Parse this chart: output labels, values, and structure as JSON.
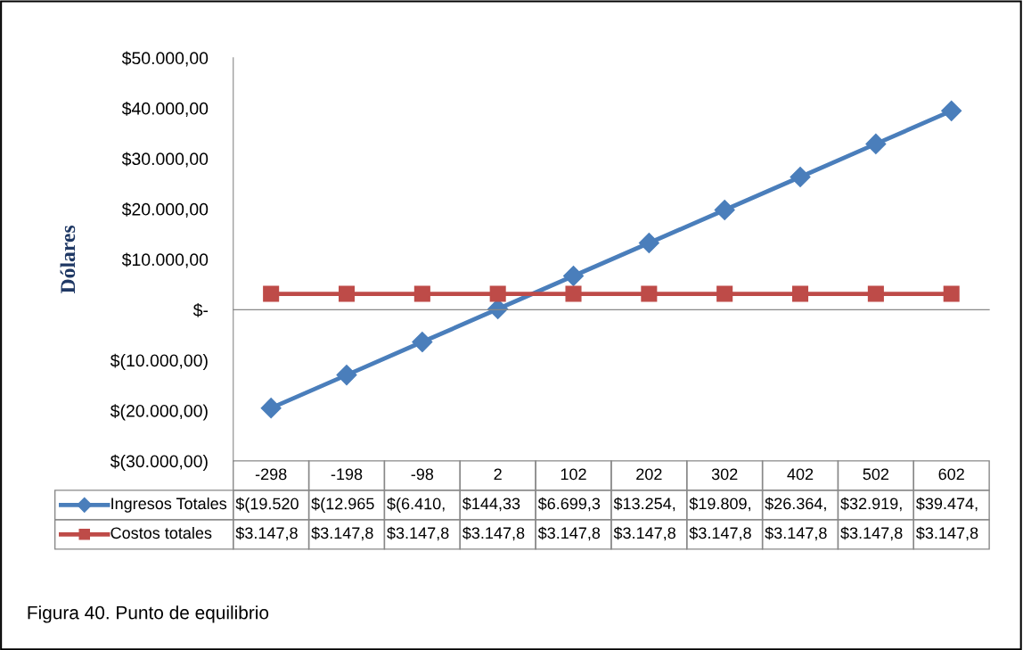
{
  "chart_data": {
    "type": "line",
    "categories": [
      "-298",
      "-198",
      "-98",
      "2",
      "102",
      "202",
      "302",
      "402",
      "502",
      "602"
    ],
    "ylabel": "Dólares",
    "series": [
      {
        "name": "Ingresos Totales",
        "color": "#4a7ebb",
        "marker": "diamond",
        "values": [
          -19520,
          -12965,
          -6410,
          144.33,
          6699.3,
          13254,
          19809,
          26364,
          32919,
          39474
        ],
        "value_labels": [
          "$(19.520",
          "$(12.965",
          "$(6.410,",
          "$144,33",
          "$6.699,3",
          "$13.254,",
          "$19.809,",
          "$26.364,",
          "$32.919,",
          "$39.474,"
        ]
      },
      {
        "name": "Costos totales",
        "color": "#be4b48",
        "marker": "square",
        "values": [
          3147.8,
          3147.8,
          3147.8,
          3147.8,
          3147.8,
          3147.8,
          3147.8,
          3147.8,
          3147.8,
          3147.8
        ],
        "value_labels": [
          "$3.147,8",
          "$3.147,8",
          "$3.147,8",
          "$3.147,8",
          "$3.147,8",
          "$3.147,8",
          "$3.147,8",
          "$3.147,8",
          "$3.147,8",
          "$3.147,8"
        ]
      }
    ],
    "ylim": [
      -30000,
      50000
    ],
    "yticks": [
      {
        "value": -30000,
        "label": "$(30.000,00)"
      },
      {
        "value": -20000,
        "label": "$(20.000,00)"
      },
      {
        "value": -10000,
        "label": "$(10.000,00)"
      },
      {
        "value": 0,
        "label": "$-"
      },
      {
        "value": 10000,
        "label": "$10.000,00"
      },
      {
        "value": 20000,
        "label": "$20.000,00"
      },
      {
        "value": 30000,
        "label": "$30.000,00"
      },
      {
        "value": 40000,
        "label": "$40.000,00"
      },
      {
        "value": 50000,
        "label": "$50.000,00"
      }
    ],
    "legend": "bottom",
    "line_style": "solid",
    "annotations": [
      "Figura 40. Punto de equilibrio"
    ]
  }
}
